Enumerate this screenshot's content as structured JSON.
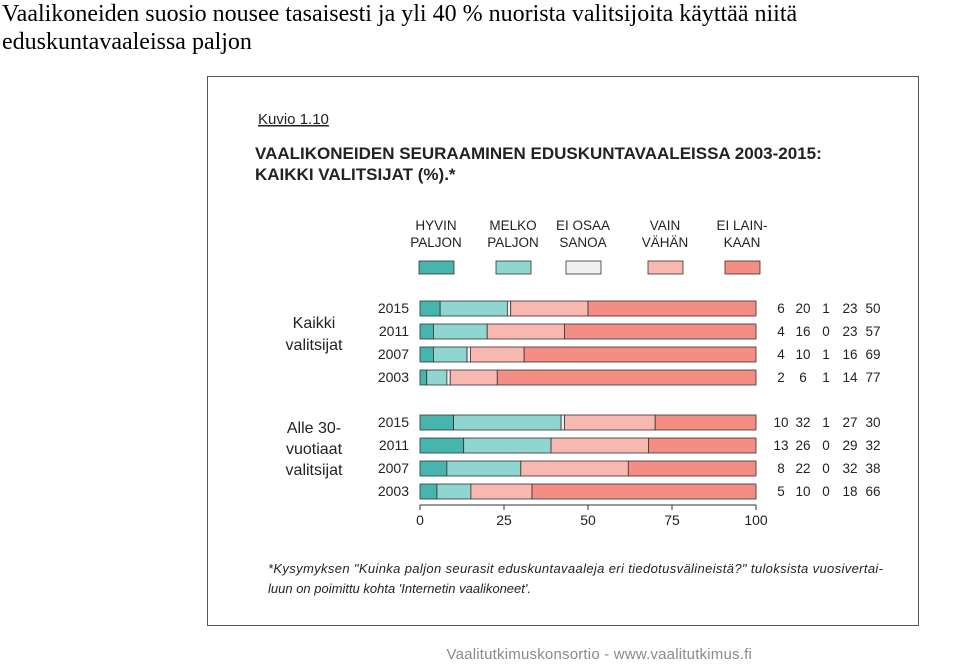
{
  "slide": {
    "title": "Vaalikoneiden suosio nousee tasaisesti ja yli 40 % nuorista valitsijoita käyttää niitä eduskuntavaaleissa paljon",
    "footer": "Vaalitutkimuskonsortio - www.vaalitutkimus.fi"
  },
  "chart_data": {
    "type": "bar",
    "orientation": "horizontal-stacked",
    "figure_label": "Kuvio 1.10",
    "title_lines": [
      "VAALIKONEIDEN SEURAAMINEN EDUSKUNTAVAALEISSA 2003-2015:",
      "KAIKKI VALITSIJAT (%).*"
    ],
    "legend": {
      "placement": "top",
      "entries": [
        {
          "lines": [
            "HYVIN",
            "PALJON"
          ],
          "color": "#45b5ae"
        },
        {
          "lines": [
            "MELKO",
            "PALJON"
          ],
          "color": "#8fd6d1"
        },
        {
          "lines": [
            "EI OSAA",
            "SANOA"
          ],
          "color": "#f0f0f0"
        },
        {
          "lines": [
            "VAIN",
            "VÄHÄN"
          ],
          "color": "#f8b8b0"
        },
        {
          "lines": [
            "EI LAIN-",
            "KAAN"
          ],
          "color": "#f48d84"
        }
      ]
    },
    "series_names": [
      "HYVIN PALJON",
      "MELKO PALJON",
      "EI OSAA SANOA",
      "VAIN VÄHÄN",
      "EI LAINKAAN"
    ],
    "x_axis": {
      "range": [
        0,
        100
      ],
      "ticks": [
        "0",
        "25",
        "50",
        "75",
        "100"
      ]
    },
    "groups": [
      {
        "label_lines": [
          "Kaikki",
          "valitsijat"
        ],
        "rows": [
          {
            "year": "2015",
            "values": [
              6,
              20,
              1,
              23,
              50
            ]
          },
          {
            "year": "2011",
            "values": [
              4,
              16,
              0,
              23,
              57
            ]
          },
          {
            "year": "2007",
            "values": [
              4,
              10,
              1,
              16,
              69
            ]
          },
          {
            "year": "2003",
            "values": [
              2,
              6,
              1,
              14,
              77
            ]
          }
        ]
      },
      {
        "label_lines": [
          "Alle 30-",
          "vuotiaat",
          "valitsijat"
        ],
        "rows": [
          {
            "year": "2015",
            "values": [
              10,
              32,
              1,
              27,
              30
            ]
          },
          {
            "year": "2011",
            "values": [
              13,
              26,
              0,
              29,
              32
            ]
          },
          {
            "year": "2007",
            "values": [
              8,
              22,
              0,
              32,
              38
            ]
          },
          {
            "year": "2003",
            "values": [
              5,
              10,
              0,
              18,
              66
            ]
          }
        ]
      }
    ],
    "footnote_lines": [
      "*Kysymyksen \"Kuinka paljon seurasit eduskuntavaaleja eri tiedotusvälineistä?\" tuloksista vuosivertai-",
      "luun on poimittu kohta 'Internetin vaalikoneet'."
    ]
  }
}
